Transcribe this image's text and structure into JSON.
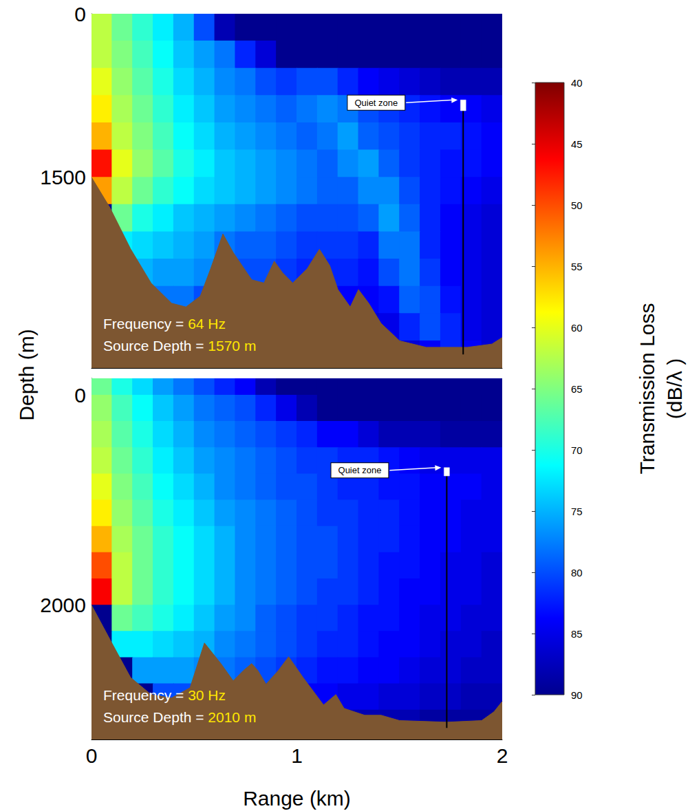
{
  "chart_data": [
    {
      "type": "heatmap",
      "annotations": [
        "Frequency = 64 Hz",
        "Source Depth = 1570 m"
      ],
      "xlim": [
        0,
        2
      ],
      "xticks": [
        0,
        1,
        2
      ],
      "ylim": [
        0,
        3250
      ],
      "yticks": [
        0,
        1500
      ],
      "tick_labels": "y",
      "grid": false,
      "x": [
        0.05,
        0.15,
        0.25,
        0.35,
        0.45,
        0.55,
        0.65,
        0.75,
        0.85,
        0.95,
        1.05,
        1.15,
        1.25,
        1.35,
        1.45,
        1.55,
        1.65,
        1.75,
        1.85,
        1.95
      ],
      "depths": [
        125,
        375,
        625,
        875,
        1125,
        1375,
        1625,
        1875,
        2125,
        2375,
        2625,
        2875,
        3125
      ],
      "transmission_loss": [
        [
          62,
          66,
          69,
          72,
          75,
          80,
          88,
          90,
          90,
          90,
          90,
          90,
          90,
          90,
          90,
          90,
          90,
          90,
          90,
          90
        ],
        [
          62,
          65,
          68,
          71,
          74,
          76,
          78,
          82,
          86,
          90,
          90,
          90,
          90,
          90,
          90,
          90,
          90,
          90,
          90,
          90
        ],
        [
          60,
          64,
          67,
          70,
          73,
          75,
          77,
          78,
          80,
          81,
          80,
          80,
          82,
          84,
          85,
          86,
          87,
          88,
          88,
          88
        ],
        [
          58,
          63,
          66,
          69,
          72,
          74,
          76,
          77,
          78,
          79,
          78,
          77,
          78,
          80,
          81,
          82,
          83,
          84,
          84,
          85
        ],
        [
          55,
          62,
          65,
          68,
          71,
          73,
          75,
          76,
          77,
          78,
          79,
          78,
          76,
          79,
          80,
          81,
          82,
          82,
          83,
          84
        ],
        [
          47,
          60,
          64,
          67,
          70,
          72,
          74,
          75,
          76,
          77,
          78,
          79,
          77,
          76,
          79,
          81,
          82,
          83,
          83,
          84
        ],
        [
          54,
          62,
          66,
          69,
          71,
          73,
          74,
          75,
          76,
          77,
          78,
          79,
          79,
          77,
          77,
          80,
          82,
          83,
          84,
          85
        ],
        [
          90,
          66,
          70,
          72,
          74,
          75,
          76,
          77,
          78,
          79,
          80,
          80,
          80,
          79,
          76,
          79,
          82,
          84,
          85,
          86
        ],
        [
          90,
          72,
          73,
          74,
          75,
          76,
          78,
          79,
          79,
          80,
          81,
          81,
          81,
          82,
          78,
          78,
          82,
          84,
          85,
          86
        ],
        [
          90,
          90,
          75,
          76,
          76,
          77,
          79,
          80,
          80,
          81,
          82,
          82,
          82,
          83,
          80,
          78,
          81,
          84,
          85,
          86
        ],
        [
          90,
          90,
          78,
          78,
          78,
          80,
          81,
          82,
          82,
          83,
          83,
          84,
          84,
          84,
          83,
          79,
          80,
          83,
          85,
          86
        ],
        [
          90,
          90,
          90,
          80,
          80,
          82,
          83,
          84,
          84,
          85,
          85,
          85,
          86,
          86,
          85,
          82,
          80,
          82,
          85,
          86
        ],
        [
          90,
          90,
          90,
          90,
          90,
          84,
          85,
          86,
          86,
          87,
          87,
          87,
          87,
          87,
          87,
          86,
          84,
          82,
          84,
          86
        ]
      ],
      "seafloor": {
        "color": "#7d5631",
        "x": [
          0,
          0.09,
          0.19,
          0.29,
          0.39,
          0.46,
          0.53,
          0.58,
          0.64,
          0.69,
          0.78,
          0.84,
          0.89,
          0.93,
          0.98,
          1.05,
          1.11,
          1.16,
          1.2,
          1.26,
          1.3,
          1.35,
          1.41,
          1.5,
          1.63,
          1.83,
          1.95,
          2
        ],
        "depth": [
          1500,
          1780,
          2156,
          2470,
          2656,
          2690,
          2590,
          2340,
          2020,
          2190,
          2440,
          2470,
          2270,
          2375,
          2470,
          2340,
          2160,
          2310,
          2530,
          2690,
          2530,
          2656,
          2840,
          3000,
          3060,
          3060,
          3030,
          2970
        ]
      },
      "receiver": {
        "range": 1.81,
        "depth": [
          850,
          3125
        ],
        "quiet_zone": {
          "label": "Quiet zone",
          "depth": [
            790,
            890
          ]
        }
      }
    },
    {
      "type": "heatmap",
      "annotations": [
        "Frequency = 30 Hz",
        "Source Depth = 2010 m"
      ],
      "xlim": [
        0,
        2
      ],
      "xticks": [
        0,
        1,
        2
      ],
      "ylim": [
        -160,
        3280
      ],
      "yticks": [
        0,
        2000
      ],
      "tick_labels": true,
      "grid": false,
      "x": [
        0.05,
        0.15,
        0.25,
        0.35,
        0.45,
        0.55,
        0.65,
        0.75,
        0.85,
        0.95,
        1.05,
        1.15,
        1.25,
        1.35,
        1.45,
        1.55,
        1.65,
        1.75,
        1.85,
        1.95
      ],
      "depths": [
        -125,
        125,
        375,
        625,
        875,
        1125,
        1375,
        1625,
        1875,
        2125,
        2375,
        2625,
        2875,
        3125
      ],
      "transmission_loss": [
        [
          66,
          70,
          73,
          76,
          78,
          80,
          82,
          84,
          88,
          90,
          90,
          90,
          90,
          90,
          90,
          90,
          90,
          90,
          90,
          90
        ],
        [
          64,
          68,
          71,
          74,
          76,
          78,
          79,
          80,
          82,
          85,
          88,
          90,
          90,
          90,
          90,
          90,
          90,
          90,
          90,
          90
        ],
        [
          63,
          67,
          70,
          73,
          75,
          77,
          78,
          79,
          80,
          81,
          82,
          84,
          84,
          86,
          88,
          88,
          88,
          89,
          89,
          89
        ],
        [
          62,
          66,
          69,
          72,
          74,
          76,
          77,
          78,
          79,
          80,
          81,
          81,
          82,
          82,
          83,
          84,
          85,
          85,
          85,
          85
        ],
        [
          60,
          65,
          68,
          71,
          73,
          75,
          77,
          78,
          79,
          80,
          80,
          81,
          82,
          82,
          83,
          83,
          84,
          84,
          84,
          85
        ],
        [
          58,
          64,
          67,
          70,
          72,
          74,
          76,
          77,
          78,
          79,
          80,
          81,
          81,
          82,
          82,
          83,
          84,
          84,
          85,
          85
        ],
        [
          55,
          63,
          66,
          69,
          71,
          73,
          75,
          77,
          78,
          79,
          80,
          80,
          81,
          82,
          82,
          83,
          84,
          84,
          85,
          85
        ],
        [
          50,
          62,
          66,
          69,
          71,
          73,
          75,
          77,
          78,
          79,
          80,
          80,
          81,
          82,
          83,
          83,
          84,
          85,
          85,
          86
        ],
        [
          46,
          62,
          66,
          69,
          71,
          73,
          75,
          77,
          78,
          79,
          80,
          81,
          81,
          82,
          83,
          84,
          84,
          85,
          85,
          86
        ],
        [
          90,
          66,
          68,
          70,
          72,
          74,
          76,
          77,
          79,
          80,
          81,
          81,
          82,
          83,
          83,
          84,
          85,
          85,
          86,
          86
        ],
        [
          90,
          72,
          72,
          73,
          74,
          75,
          77,
          78,
          79,
          80,
          81,
          82,
          82,
          83,
          84,
          84,
          85,
          86,
          86,
          87
        ],
        [
          90,
          90,
          76,
          76,
          76,
          77,
          78,
          79,
          80,
          81,
          82,
          83,
          83,
          84,
          84,
          85,
          86,
          86,
          87,
          87
        ],
        [
          90,
          90,
          90,
          80,
          80,
          80,
          80,
          81,
          82,
          83,
          84,
          84,
          85,
          85,
          86,
          86,
          87,
          87,
          88,
          88
        ],
        [
          90,
          90,
          90,
          90,
          90,
          90,
          90,
          90,
          90,
          90,
          90,
          90,
          88,
          88,
          88,
          88,
          89,
          89,
          89,
          89
        ]
      ],
      "seafloor": {
        "color": "#7d5631",
        "x": [
          0,
          0.09,
          0.19,
          0.29,
          0.39,
          0.48,
          0.55,
          0.63,
          0.69,
          0.74,
          0.78,
          0.81,
          0.85,
          0.91,
          0.96,
          1.03,
          1.13,
          1.19,
          1.23,
          1.33,
          1.41,
          1.5,
          1.73,
          1.9,
          1.96,
          2
        ],
        "depth": [
          2000,
          2328,
          2689,
          2852,
          2885,
          2787,
          2361,
          2557,
          2721,
          2623,
          2557,
          2623,
          2754,
          2623,
          2492,
          2689,
          2951,
          2852,
          2984,
          3049,
          3049,
          3100,
          3115,
          3100,
          3016,
          2918
        ]
      },
      "receiver": {
        "range": 1.73,
        "depth": [
          760,
          3170
        ],
        "quiet_zone": {
          "label": "Quiet zone",
          "depth": [
            690,
            770
          ]
        }
      }
    }
  ],
  "xlabel": "Range (km)",
  "ylabel": "Depth (m)",
  "colorbar": {
    "label": "Transmission Loss (dB/λ )",
    "lim": [
      40,
      90
    ],
    "ticks": [
      40,
      45,
      50,
      55,
      60,
      65,
      70,
      75,
      80,
      85,
      90
    ]
  }
}
